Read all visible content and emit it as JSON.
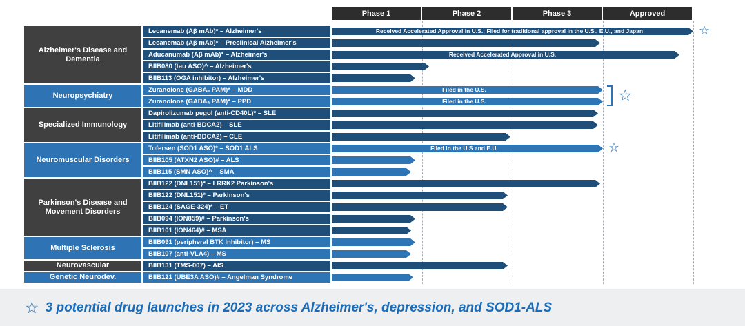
{
  "colors": {
    "phase_header_bg": "#2d2d2d",
    "phase_header_text": "#ffffff",
    "category_dark_bg": "#404040",
    "category_light_bg": "#2e74b5",
    "row_dark_bg": "#1f4e79",
    "row_light_bg": "#2e75b6",
    "star_blue": "#2e74b5",
    "divider_gray": "#a8adb3",
    "footer_bg": "#edeff1",
    "footer_text_color": "#1b6cb8"
  },
  "symbols": {
    "star": "☆"
  },
  "chart_data": {
    "type": "bar",
    "title": "",
    "x_axis": {
      "labels": [
        "Phase 1",
        "Phase 2",
        "Phase 3",
        "Approved"
      ],
      "range_phases": [
        0,
        4
      ]
    },
    "groups": [
      {
        "category": "Alzheimer's Disease and Dementia",
        "theme": "dark",
        "rows": [
          {
            "label": "Lecanemab (Aβ mAb)* – Alzheimer's",
            "end_phase": 4.0,
            "annotation": "Received Accelerated Approval in U.S.; Filed for traditional approval in the U.S., E.U., and Japan",
            "star": true
          },
          {
            "label": "Lecanemab (Aβ mAb)* – Preclinical Alzheimer's",
            "end_phase": 2.97
          },
          {
            "label": "Aducanumab (Aβ mAb)* – Alzheimer's",
            "end_phase": 3.85,
            "annotation": "Received Accelerated Approval in U.S."
          },
          {
            "label": "BIIB080 (tau ASO)^ – Alzheimer's",
            "end_phase": 1.08
          },
          {
            "label": "BIIB113 (OGA inhibitor) – Alzheimer's",
            "end_phase": 0.92
          }
        ]
      },
      {
        "category": "Neuropsychiatry",
        "theme": "light",
        "bracket_star": true,
        "rows": [
          {
            "label": "Zuranolone (GABAₐ PAM)* – MDD",
            "end_phase": 3.0,
            "annotation": "Filed in the U.S."
          },
          {
            "label": "Zuranolone (GABAₐ PAM)* – PPD",
            "end_phase": 3.0,
            "annotation": "Filed in the U.S."
          }
        ]
      },
      {
        "category": "Specialized Immunology",
        "theme": "dark",
        "rows": [
          {
            "label": "Dapirolizumab pegol (anti-CD40L)* – SLE",
            "end_phase": 2.95
          },
          {
            "label": "Litifilimab (anti-BDCA2) – SLE",
            "end_phase": 2.95
          },
          {
            "label": "Litifilimab (anti-BDCA2) – CLE",
            "end_phase": 1.98
          }
        ]
      },
      {
        "category": "Neuromuscular Disorders",
        "theme": "light",
        "rows": [
          {
            "label": "Tofersen (SOD1 ASO)* – SOD1 ALS",
            "end_phase": 3.0,
            "annotation": "Filed in the U.S and E.U.",
            "star": true
          },
          {
            "label": "BIIB105 (ATXN2 ASO)# – ALS",
            "end_phase": 0.92
          },
          {
            "label": "BIIB115 (SMN ASO)^ – SMA",
            "end_phase": 0.88
          }
        ]
      },
      {
        "category": "Parkinson's Disease and Movement Disorders",
        "theme": "dark",
        "rows": [
          {
            "label": "BIIB122 (DNL151)* – LRRK2 Parkinson's",
            "end_phase": 2.97
          },
          {
            "label": "BIIB122 (DNL151)* – Parkinson's",
            "end_phase": 1.95
          },
          {
            "label": "BIIB124 (SAGE-324)* – ET",
            "end_phase": 1.95
          },
          {
            "label": "BIIB094 (ION859)# – Parkinson's",
            "end_phase": 0.92
          },
          {
            "label": "BIIB101 (ION464)# – MSA",
            "end_phase": 0.88
          }
        ]
      },
      {
        "category": "Multiple Sclerosis",
        "theme": "light",
        "rows": [
          {
            "label": "BIIB091 (peripheral BTK Inhibitor) – MS",
            "end_phase": 0.92
          },
          {
            "label": "BIIB107 (anti-VLA4) – MS",
            "end_phase": 0.88
          }
        ]
      },
      {
        "category": "Neurovascular",
        "theme": "dark",
        "rows": [
          {
            "label": "BIIB131 (TMS-007) – AIS",
            "end_phase": 1.95
          }
        ]
      },
      {
        "category": "Genetic Neurodev.",
        "theme": "light",
        "rows": [
          {
            "label": "BIIB121 (UBE3A ASO)# – Angelman Syndrome",
            "end_phase": 0.9
          }
        ]
      }
    ]
  },
  "footer": {
    "text": "3 potential drug launches in 2023 across Alzheimer's, depression, and SOD1-ALS"
  }
}
